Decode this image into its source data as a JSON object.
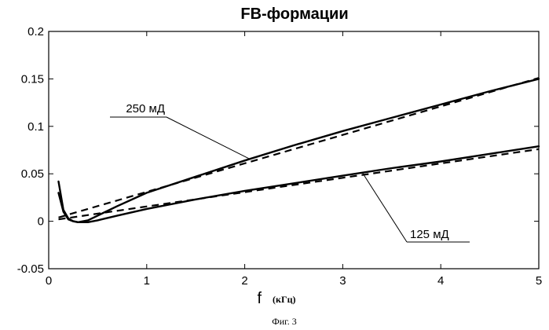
{
  "chart_data": {
    "type": "line",
    "title": "FB-формации",
    "xlabel": "f",
    "xlabel_unit": "(кГц)",
    "ylabel": "",
    "xlim": [
      0,
      5
    ],
    "ylim": [
      -0.05,
      0.2
    ],
    "xticks": [
      "0",
      "1",
      "2",
      "3",
      "4",
      "5"
    ],
    "yticks": [
      "-0.05",
      "0",
      "0.05",
      "0.1",
      "0.15",
      "0.2"
    ],
    "grid": false,
    "annotations": [
      {
        "text": "250 мД",
        "series_index": 0
      },
      {
        "text": "125 мД",
        "series_index": 2
      }
    ],
    "series": [
      {
        "style": "solid",
        "x": [
          0.1,
          0.15,
          0.2,
          0.25,
          0.3,
          0.4,
          0.5,
          0.7,
          1.0,
          1.5,
          2.0,
          2.5,
          3.0,
          3.5,
          4.0,
          4.5,
          5.0
        ],
        "y": [
          0.042,
          0.012,
          0.003,
          0.0,
          -0.001,
          0.001,
          0.006,
          0.016,
          0.03,
          0.047,
          0.064,
          0.08,
          0.095,
          0.109,
          0.123,
          0.137,
          0.15
        ]
      },
      {
        "style": "dashed",
        "x": [
          0.1,
          5.0
        ],
        "y": [
          0.004,
          0.151
        ]
      },
      {
        "style": "solid",
        "x": [
          0.1,
          0.15,
          0.2,
          0.25,
          0.3,
          0.4,
          0.5,
          0.7,
          1.0,
          1.5,
          2.0,
          2.5,
          3.0,
          3.5,
          4.0,
          4.5,
          5.0
        ],
        "y": [
          0.03,
          0.01,
          0.002,
          0.0,
          -0.001,
          -0.001,
          0.001,
          0.006,
          0.013,
          0.023,
          0.032,
          0.04,
          0.048,
          0.056,
          0.063,
          0.071,
          0.079
        ]
      },
      {
        "style": "dashed",
        "x": [
          0.1,
          5.0
        ],
        "y": [
          0.002,
          0.076
        ]
      }
    ]
  },
  "caption": "Фиг. 3"
}
